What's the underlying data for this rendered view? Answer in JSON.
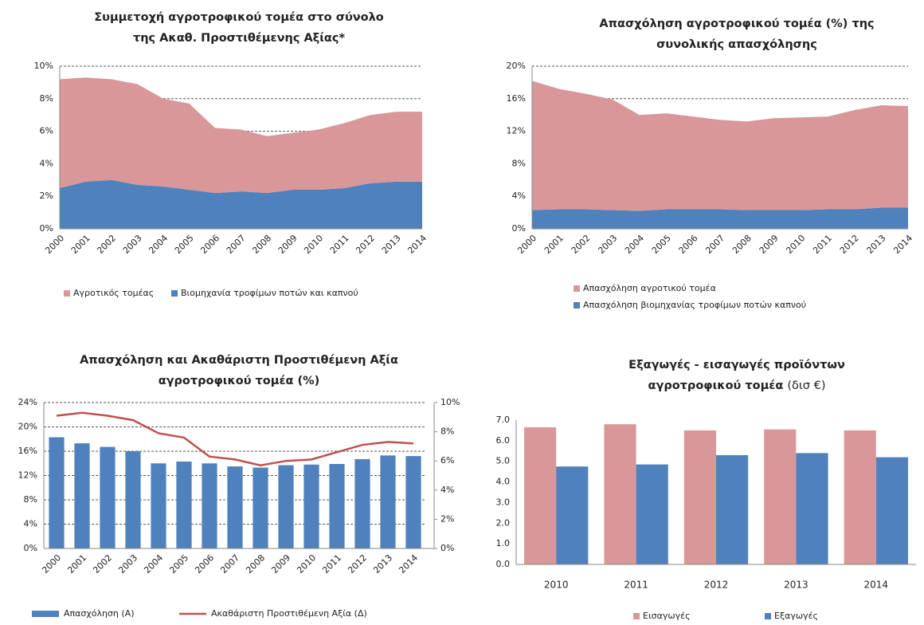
{
  "chart_data": [
    {
      "type": "area",
      "stacked": true,
      "title": [
        "Συμμετοχή αγροτροφικού τομέα στο σύνολο",
        "της Ακαθ. Προστιθέμενης Αξίας*"
      ],
      "categories": [
        "2000",
        "2001",
        "2002",
        "2003",
        "2004",
        "2005",
        "2006",
        "2007",
        "2008",
        "2009",
        "2010",
        "2011",
        "2012",
        "2013",
        "2014"
      ],
      "series": [
        {
          "name": "Αγροτικός τομέας",
          "color": "#d9979a",
          "values": [
            6.7,
            6.4,
            6.2,
            6.2,
            5.4,
            5.3,
            4.0,
            3.8,
            3.5,
            3.5,
            3.7,
            4.0,
            4.2,
            4.3,
            4.3
          ]
        },
        {
          "name": "Βιομηχανία τροφίμων ποτών και καπνού",
          "color": "#4f81bd",
          "values": [
            2.5,
            2.9,
            3.0,
            2.7,
            2.6,
            2.4,
            2.2,
            2.3,
            2.2,
            2.4,
            2.4,
            2.5,
            2.8,
            2.9,
            2.9
          ]
        }
      ],
      "ylim": [
        0,
        10
      ],
      "yticks": [
        {
          "value": 0,
          "label": "0%"
        },
        {
          "value": 2,
          "label": "2%"
        },
        {
          "value": 4,
          "label": "4%"
        },
        {
          "value": 6,
          "label": "6%"
        },
        {
          "value": 8,
          "label": "8%"
        },
        {
          "value": 10,
          "label": "10%"
        }
      ],
      "grid": true
    },
    {
      "type": "area",
      "stacked": true,
      "title": [
        "Απασχόληση αγροτροφικού τομέα (%) της",
        "συνολικής απασχόλησης"
      ],
      "categories": [
        "2000",
        "2001",
        "2002",
        "2003",
        "2004",
        "2005",
        "2006",
        "2007",
        "2008",
        "2009",
        "2010",
        "2011",
        "2012",
        "2013",
        "2014"
      ],
      "series": [
        {
          "name": "Απασχόληση αγροτικού τομέα",
          "color": "#d9979a",
          "values": [
            15.9,
            14.8,
            14.2,
            13.6,
            11.8,
            11.8,
            11.4,
            11.0,
            10.9,
            11.3,
            11.4,
            11.4,
            12.2,
            12.6,
            12.5
          ]
        },
        {
          "name": "Απασχόληση βιομηχανίας τροφίμων ποτών καπνού",
          "color": "#4f81bd",
          "values": [
            2.3,
            2.4,
            2.4,
            2.3,
            2.2,
            2.4,
            2.4,
            2.4,
            2.3,
            2.3,
            2.3,
            2.4,
            2.4,
            2.6,
            2.6
          ]
        }
      ],
      "ylim": [
        0,
        20
      ],
      "yticks": [
        {
          "value": 0,
          "label": "0%"
        },
        {
          "value": 4,
          "label": "4%"
        },
        {
          "value": 8,
          "label": "8%"
        },
        {
          "value": 12,
          "label": "12%"
        },
        {
          "value": 16,
          "label": "16%"
        },
        {
          "value": 20,
          "label": "20%"
        }
      ],
      "grid": true
    },
    {
      "type": "combo",
      "title": [
        "Απασχόληση και Ακαθάριστη Προστιθέμενη Αξία",
        "αγροτροφικού τομέα (%)"
      ],
      "categories": [
        "2000",
        "2001",
        "2002",
        "2003",
        "2004",
        "2005",
        "2006",
        "2007",
        "2008",
        "2009",
        "2010",
        "2011",
        "2012",
        "2013",
        "2014"
      ],
      "series": [
        {
          "name": "Απασχόληση (Α)",
          "color": "#4f81bd",
          "values": [
            18.3,
            17.3,
            16.7,
            16.0,
            14.0,
            14.3,
            14.0,
            13.5,
            13.3,
            13.7,
            13.8,
            13.9,
            14.7,
            15.3,
            15.2
          ]
        },
        {
          "name": "Ακαθάριστη Προστιθέμενη Αξία (Δ)",
          "color": "#c0504d",
          "axis": "y2",
          "values": [
            9.1,
            9.3,
            9.1,
            8.8,
            7.9,
            7.6,
            6.3,
            6.1,
            5.7,
            6.0,
            6.1,
            6.6,
            7.1,
            7.3,
            7.2
          ]
        }
      ],
      "ylim": [
        0,
        24
      ],
      "yticks": [
        {
          "value": 0,
          "label": "0%"
        },
        {
          "value": 4,
          "label": "4%"
        },
        {
          "value": 8,
          "label": "8%"
        },
        {
          "value": 12,
          "label": "12%"
        },
        {
          "value": 16,
          "label": "16%"
        },
        {
          "value": 20,
          "label": "20%"
        },
        {
          "value": 24,
          "label": "24%"
        }
      ],
      "y2lim": [
        0,
        10
      ],
      "y2ticks": [
        {
          "value": 0,
          "label": "0%"
        },
        {
          "value": 2,
          "label": "2%"
        },
        {
          "value": 4,
          "label": "4%"
        },
        {
          "value": 6,
          "label": "6%"
        },
        {
          "value": 8,
          "label": "8%"
        },
        {
          "value": 10,
          "label": "10%"
        }
      ],
      "grid": true
    },
    {
      "type": "bar",
      "title": [
        "Εξαγωγές - εισαγωγές προϊόντων",
        "αγροτροφικού τομέα"
      ],
      "subtitle": "(δισ €)",
      "categories": [
        "2010",
        "2011",
        "2012",
        "2013",
        "2014"
      ],
      "series": [
        {
          "name": "Εισαγωγές",
          "color": "#d9979a",
          "values": [
            6.65,
            6.8,
            6.5,
            6.55,
            6.5
          ]
        },
        {
          "name": "Εξαγωγές",
          "color": "#4f81bd",
          "values": [
            4.75,
            4.85,
            5.3,
            5.4,
            5.2
          ]
        }
      ],
      "ylim": [
        0,
        7
      ],
      "yticks": [
        {
          "value": 0,
          "label": "0.0"
        },
        {
          "value": 1,
          "label": "1.0"
        },
        {
          "value": 2,
          "label": "2.0"
        },
        {
          "value": 3,
          "label": "3.0"
        },
        {
          "value": 4,
          "label": "4.0"
        },
        {
          "value": 5,
          "label": "5.0"
        },
        {
          "value": 6,
          "label": "6.0"
        },
        {
          "value": 7,
          "label": "7.0"
        }
      ],
      "grid": false
    }
  ]
}
